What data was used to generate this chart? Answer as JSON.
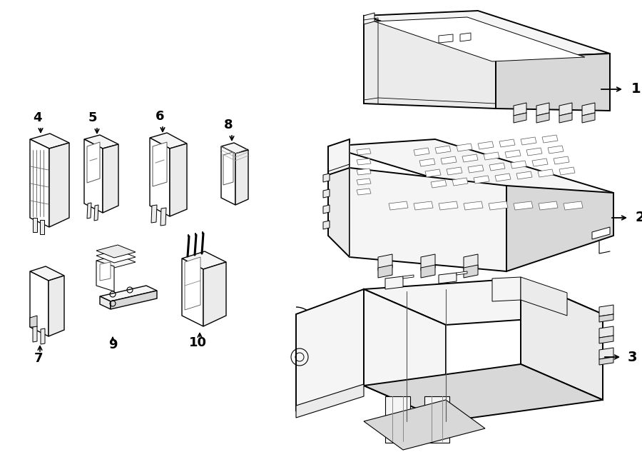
{
  "bg_color": "#ffffff",
  "lc": "#000000",
  "lw": 1.0,
  "lw_thin": 0.6,
  "lw_thick": 1.4,
  "gray_light": "#f5f5f5",
  "gray_mid": "#ebebeb",
  "gray_dark": "#d8d8d8",
  "white": "#ffffff"
}
